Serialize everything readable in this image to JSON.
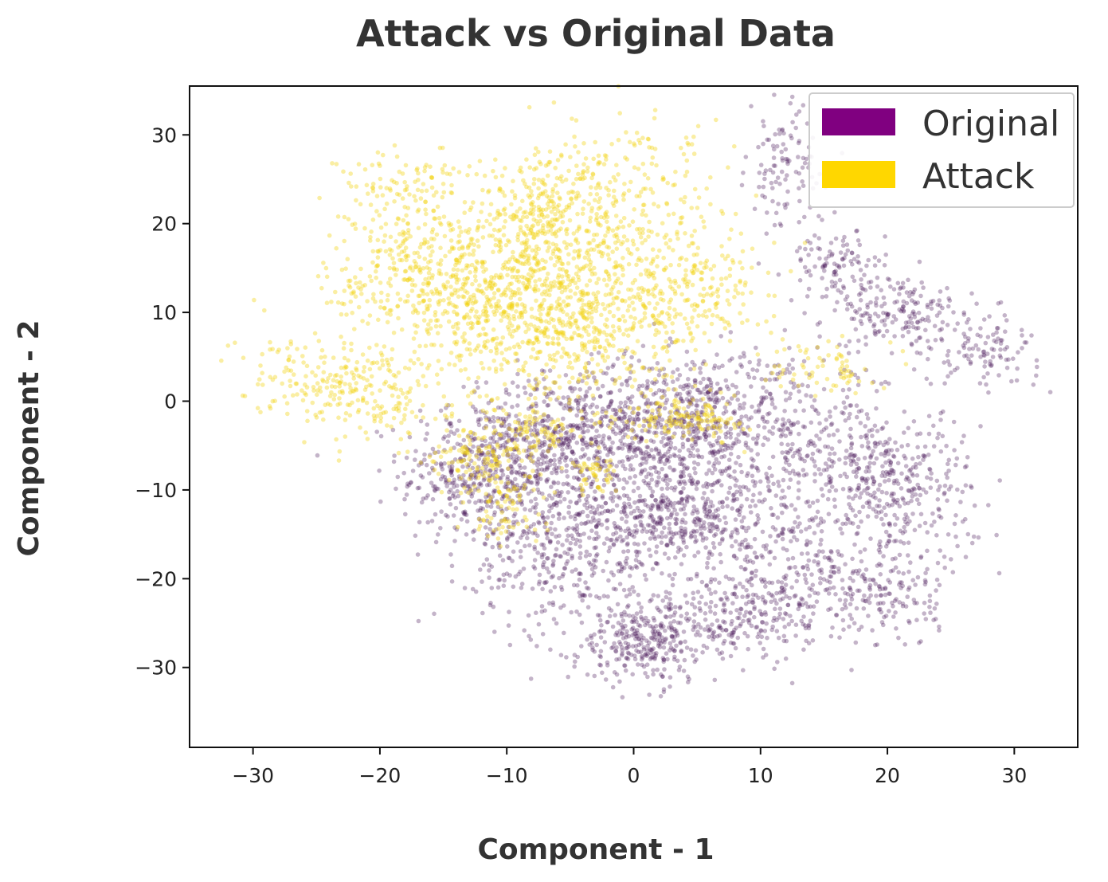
{
  "chart_data": {
    "type": "scatter",
    "title": "Attack vs Original Data",
    "xlabel": "Component - 1",
    "ylabel": "Component - 2",
    "xlim": [
      -35,
      35
    ],
    "ylim": [
      -39,
      35.5
    ],
    "xticks": [
      -30,
      -20,
      -10,
      0,
      10,
      20,
      30
    ],
    "yticks": [
      -30,
      -20,
      -10,
      0,
      10,
      20,
      30
    ],
    "xtick_labels": [
      "−30",
      "−20",
      "−10",
      "0",
      "10",
      "20",
      "30"
    ],
    "ytick_labels": [
      "−30",
      "−20",
      "−10",
      "0",
      "10",
      "20",
      "30"
    ],
    "grid": false,
    "legend_position": "top-right",
    "series": [
      {
        "name": "Original",
        "color": "#800080",
        "point_color": "#4b1b5c",
        "approx_count": 4200,
        "clusters": [
          {
            "cx": -12,
            "cy": -8,
            "sx": 3.2,
            "sy": 4.0,
            "n": 420
          },
          {
            "cx": -5,
            "cy": -5,
            "sx": 4.0,
            "sy": 4.0,
            "n": 500
          },
          {
            "cx": 2,
            "cy": -3,
            "sx": 4.5,
            "sy": 4.0,
            "n": 520
          },
          {
            "cx": 4,
            "cy": -13,
            "sx": 3.5,
            "sy": 3.0,
            "n": 420
          },
          {
            "cx": -5,
            "cy": -17,
            "sx": 4.0,
            "sy": 4.0,
            "n": 380
          },
          {
            "cx": 1,
            "cy": -27,
            "sx": 3.0,
            "sy": 2.5,
            "n": 330
          },
          {
            "cx": 9,
            "cy": -24,
            "sx": 4.0,
            "sy": 2.5,
            "n": 230
          },
          {
            "cx": 13,
            "cy": -6,
            "sx": 4.5,
            "sy": 5.0,
            "n": 420
          },
          {
            "cx": 21,
            "cy": -10,
            "sx": 3.0,
            "sy": 4.5,
            "n": 330
          },
          {
            "cx": 20,
            "cy": -22,
            "sx": 2.0,
            "sy": 3.0,
            "n": 120
          },
          {
            "cx": 14,
            "cy": -20,
            "sx": 3.0,
            "sy": 3.0,
            "n": 150
          },
          {
            "cx": 12,
            "cy": 26,
            "sx": 1.5,
            "sy": 3.5,
            "n": 110
          },
          {
            "cx": 16,
            "cy": 15,
            "sx": 2.0,
            "sy": 2.0,
            "n": 110
          },
          {
            "cx": 21,
            "cy": 10,
            "sx": 2.5,
            "sy": 2.0,
            "n": 150
          },
          {
            "cx": 27,
            "cy": 6,
            "sx": 2.5,
            "sy": 2.0,
            "n": 120
          },
          {
            "cx": 7,
            "cy": 0,
            "sx": 3.0,
            "sy": 3.0,
            "n": 140
          }
        ]
      },
      {
        "name": "Attack",
        "color": "#FFD700",
        "point_color": "#f3d20c",
        "approx_count": 3000,
        "clusters": [
          {
            "cx": -7,
            "cy": 11,
            "sx": 5.5,
            "sy": 5.5,
            "n": 1100
          },
          {
            "cx": -7,
            "cy": 22,
            "sx": 3.0,
            "sy": 3.0,
            "n": 220
          },
          {
            "cx": -16,
            "cy": 14,
            "sx": 4.0,
            "sy": 4.0,
            "n": 320
          },
          {
            "cx": -21,
            "cy": 1,
            "sx": 2.5,
            "sy": 3.0,
            "n": 180
          },
          {
            "cx": -27,
            "cy": 3,
            "sx": 2.5,
            "sy": 2.5,
            "n": 80
          },
          {
            "cx": -18,
            "cy": 24,
            "sx": 2.5,
            "sy": 2.5,
            "n": 110
          },
          {
            "cx": 0,
            "cy": 22,
            "sx": 4.0,
            "sy": 5.0,
            "n": 230
          },
          {
            "cx": 5,
            "cy": 12,
            "sx": 3.0,
            "sy": 3.0,
            "n": 160
          },
          {
            "cx": 15,
            "cy": 4,
            "sx": 2.0,
            "sy": 1.5,
            "n": 70
          },
          {
            "cx": -12,
            "cy": -6,
            "sx": 2.0,
            "sy": 2.5,
            "n": 150
          },
          {
            "cx": -10,
            "cy": -12,
            "sx": 1.5,
            "sy": 2.0,
            "n": 70
          },
          {
            "cx": 4,
            "cy": -2,
            "sx": 2.5,
            "sy": 1.2,
            "n": 150
          },
          {
            "cx": -3,
            "cy": -8,
            "sx": 1.0,
            "sy": 1.2,
            "n": 50
          },
          {
            "cx": -7,
            "cy": -3,
            "sx": 2.0,
            "sy": 1.5,
            "n": 80
          }
        ]
      }
    ]
  }
}
